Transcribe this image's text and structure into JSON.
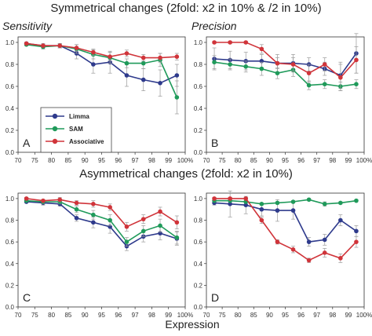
{
  "figure": {
    "top_title": "Symmetrical changes (2fold:  x2 in 10% & /2 in 10%)",
    "mid_title": "Asymmetrical changes (2fold:  x2 in 10%)",
    "xlabel": "Expression",
    "col_titles": [
      "Sensitivity",
      "Precision"
    ]
  },
  "legend": [
    {
      "name": "Limma",
      "color": "#2e3a8c"
    },
    {
      "name": "SAM",
      "color": "#1f9a5a"
    },
    {
      "name": "Associative",
      "color": "#d0343a"
    }
  ],
  "chart_data": [
    {
      "type": "line",
      "panel": "A",
      "title": "Sensitivity",
      "x_tick_labels": [
        "70",
        "75",
        "80",
        "85",
        "90",
        "95",
        "96",
        "97",
        "98",
        "99",
        "100%"
      ],
      "y_tick_labels": [
        "0.0",
        "0.2",
        "0.4",
        "0.6",
        "0.8",
        "1.0"
      ],
      "ylim": [
        0,
        1.05
      ],
      "x_positions": [
        0.5,
        1.5,
        2.5,
        3.5,
        4.5,
        5.5,
        6.5,
        7.5,
        8.5,
        9.5
      ],
      "series": [
        {
          "name": "Limma",
          "values": [
            0.99,
            0.97,
            0.97,
            0.9,
            0.8,
            0.82,
            0.7,
            0.66,
            0.63,
            0.7
          ],
          "errors": [
            0.01,
            0.02,
            0.02,
            0.05,
            0.08,
            0.1,
            0.1,
            0.1,
            0.12,
            0.1
          ]
        },
        {
          "name": "SAM",
          "values": [
            0.98,
            0.96,
            0.97,
            0.94,
            0.89,
            0.86,
            0.81,
            0.81,
            0.84,
            0.5
          ],
          "errors": [
            0.01,
            0.02,
            0.02,
            0.04,
            0.04,
            0.05,
            0.04,
            0.05,
            0.06,
            0.15
          ]
        },
        {
          "name": "Associative",
          "values": [
            0.99,
            0.97,
            0.97,
            0.95,
            0.91,
            0.87,
            0.9,
            0.86,
            0.86,
            0.87
          ],
          "errors": [
            0.01,
            0.01,
            0.02,
            0.03,
            0.03,
            0.04,
            0.03,
            0.03,
            0.04,
            0.03
          ]
        }
      ]
    },
    {
      "type": "line",
      "panel": "B",
      "title": "Precision",
      "x_tick_labels": [
        "70",
        "75",
        "80",
        "85",
        "90",
        "95",
        "96",
        "97",
        "98",
        "99",
        "100%"
      ],
      "y_tick_labels": [
        "0.0",
        "0.2",
        "0.4",
        "0.6",
        "0.8",
        "1.0"
      ],
      "ylim": [
        0,
        1.05
      ],
      "x_positions": [
        0.5,
        1.5,
        2.5,
        3.5,
        4.5,
        5.5,
        6.5,
        7.5,
        8.5,
        9.5
      ],
      "series": [
        {
          "name": "Limma",
          "values": [
            0.85,
            0.84,
            0.83,
            0.83,
            0.81,
            0.81,
            0.8,
            0.76,
            0.7,
            0.9
          ],
          "errors": [
            0.1,
            0.08,
            0.08,
            0.06,
            0.08,
            0.08,
            0.06,
            0.06,
            0.12,
            0.18
          ]
        },
        {
          "name": "SAM",
          "values": [
            0.82,
            0.8,
            0.78,
            0.76,
            0.72,
            0.75,
            0.61,
            0.62,
            0.6,
            0.62
          ],
          "errors": [
            0.06,
            0.05,
            0.05,
            0.06,
            0.05,
            0.06,
            0.04,
            0.04,
            0.04,
            0.04
          ]
        },
        {
          "name": "Associative",
          "values": [
            1.0,
            1.0,
            1.0,
            0.94,
            0.81,
            0.8,
            0.72,
            0.8,
            0.68,
            0.84
          ],
          "errors": [
            0.01,
            0.01,
            0.01,
            0.04,
            0.05,
            0.06,
            0.08,
            0.06,
            0.12,
            0.12
          ]
        }
      ]
    },
    {
      "type": "line",
      "panel": "C",
      "title": "",
      "x_tick_labels": [
        "70",
        "75",
        "80",
        "85",
        "90",
        "95",
        "96",
        "97",
        "98",
        "99",
        "100%"
      ],
      "y_tick_labels": [
        "0.0",
        "0.2",
        "0.4",
        "0.6",
        "0.8",
        "1.0"
      ],
      "ylim": [
        0,
        1.05
      ],
      "x_positions": [
        0.5,
        1.5,
        2.5,
        3.5,
        4.5,
        5.5,
        6.5,
        7.5,
        8.5,
        9.5
      ],
      "series": [
        {
          "name": "Limma",
          "values": [
            0.97,
            0.96,
            0.95,
            0.82,
            0.78,
            0.74,
            0.56,
            0.65,
            0.68,
            0.63
          ],
          "errors": [
            0.01,
            0.02,
            0.02,
            0.03,
            0.05,
            0.06,
            0.04,
            0.05,
            0.06,
            0.06
          ]
        },
        {
          "name": "SAM",
          "values": [
            0.98,
            0.97,
            0.97,
            0.9,
            0.85,
            0.8,
            0.6,
            0.7,
            0.75,
            0.64
          ],
          "errors": [
            0.01,
            0.02,
            0.02,
            0.03,
            0.04,
            0.05,
            0.04,
            0.05,
            0.06,
            0.06
          ]
        },
        {
          "name": "Associative",
          "values": [
            1.0,
            0.98,
            0.99,
            0.96,
            0.95,
            0.92,
            0.74,
            0.81,
            0.88,
            0.78
          ],
          "errors": [
            0.01,
            0.01,
            0.02,
            0.02,
            0.03,
            0.03,
            0.04,
            0.04,
            0.04,
            0.06
          ]
        }
      ]
    },
    {
      "type": "line",
      "panel": "D",
      "title": "",
      "x_tick_labels": [
        "70",
        "75",
        "80",
        "85",
        "90",
        "95",
        "96",
        "97",
        "98",
        "99",
        "100%"
      ],
      "y_tick_labels": [
        "0.0",
        "0.2",
        "0.4",
        "0.6",
        "0.8",
        "1.0"
      ],
      "ylim": [
        0,
        1.05
      ],
      "x_positions": [
        0.5,
        1.5,
        2.5,
        3.5,
        4.5,
        5.5,
        6.5,
        7.5,
        8.5,
        9.5
      ],
      "series": [
        {
          "name": "Limma",
          "values": [
            0.96,
            0.95,
            0.94,
            0.9,
            0.89,
            0.89,
            0.6,
            0.62,
            0.8,
            0.7
          ],
          "errors": [
            0.02,
            0.12,
            0.08,
            0.06,
            0.1,
            0.08,
            0.04,
            0.05,
            0.05,
            0.05
          ]
        },
        {
          "name": "SAM",
          "values": [
            0.98,
            0.98,
            0.97,
            0.95,
            0.96,
            0.97,
            0.99,
            0.95,
            0.96,
            0.98
          ],
          "errors": [
            0.01,
            0.01,
            0.01,
            0.01,
            0.01,
            0.01,
            0.01,
            0.02,
            0.01,
            0.01
          ]
        },
        {
          "name": "Associative",
          "values": [
            1.0,
            1.0,
            1.0,
            0.8,
            0.6,
            0.53,
            0.43,
            0.5,
            0.45,
            0.6
          ],
          "errors": [
            0.01,
            0.01,
            0.01,
            0.03,
            0.02,
            0.03,
            0.02,
            0.04,
            0.04,
            0.05
          ]
        }
      ]
    }
  ]
}
